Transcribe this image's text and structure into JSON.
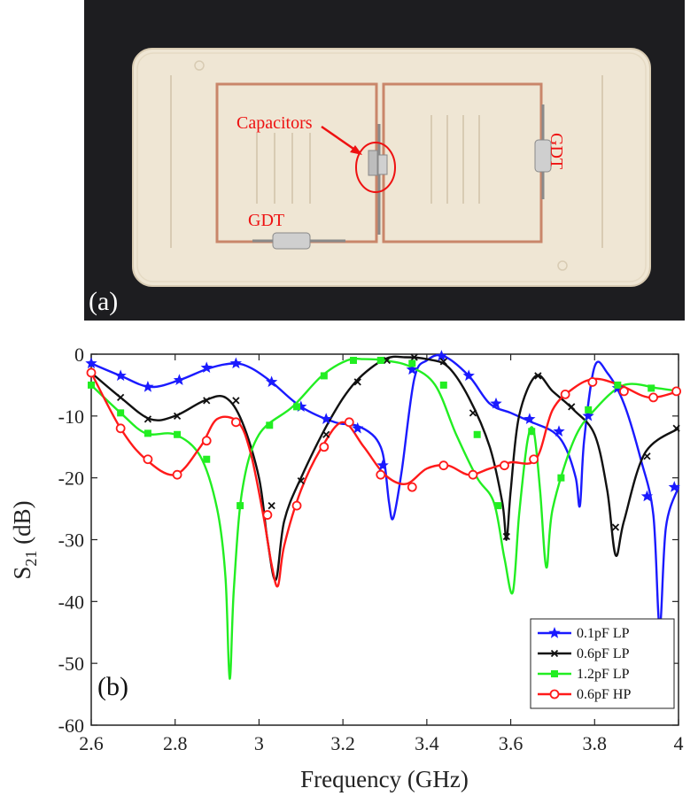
{
  "photo": {
    "panel_label": "(a)",
    "labels": {
      "capacitors": "Capacitors",
      "gdt_bottom": "GDT",
      "gdt_right": "GDT"
    },
    "colors": {
      "background": "#1c1c1e",
      "board": "#efe6d4",
      "trace": "#c9866a",
      "annotation": "#ee1111"
    }
  },
  "chart_data": {
    "type": "line",
    "panel_label": "(b)",
    "xlabel": "Frequency (GHz)",
    "ylabel_main": "S",
    "ylabel_sub": "21",
    "ylabel_suffix": "(dB)",
    "xlim": [
      2.6,
      4.0
    ],
    "ylim": [
      -60,
      0
    ],
    "xticks": [
      "2.6",
      "2.8",
      "3",
      "3.2",
      "3.4",
      "3.6",
      "3.8",
      "4"
    ],
    "yticks": [
      "0",
      "-10",
      "-20",
      "-30",
      "-40",
      "-50",
      "-60"
    ],
    "legend_position": "bottom-right",
    "series": [
      {
        "name": "0.1pF LP",
        "color": "#1a1aff",
        "marker": "star",
        "x": [
          2.6,
          2.67,
          2.74,
          2.81,
          2.88,
          2.94,
          2.98,
          3.03,
          3.1,
          3.18,
          3.23,
          3.27,
          3.29,
          3.3,
          3.31,
          3.32,
          3.34,
          3.37,
          3.4,
          3.44,
          3.5,
          3.55,
          3.6,
          3.65,
          3.7,
          3.73,
          3.755,
          3.765,
          3.775,
          3.8,
          3.83,
          3.87,
          3.91,
          3.94,
          3.955,
          3.97,
          4.0
        ],
        "y": [
          -1.5,
          -3.5,
          -5.3,
          -4.2,
          -2.3,
          -1.5,
          -2.2,
          -4.5,
          -8.5,
          -11,
          -11.5,
          -13,
          -15,
          -18,
          -24,
          -26.5,
          -19,
          -4,
          -1,
          -0.3,
          -3.5,
          -8,
          -9.5,
          -11,
          -12.5,
          -15,
          -20,
          -24.5,
          -14,
          -2,
          -3,
          -8,
          -17,
          -26,
          -44,
          -28,
          -21.5
        ],
        "marker_x": [
          2.6,
          2.67,
          2.735,
          2.81,
          2.875,
          2.945,
          3.03,
          3.1,
          3.16,
          3.235,
          3.295,
          3.365,
          3.435,
          3.5,
          3.565,
          3.645,
          3.715,
          3.785,
          3.855,
          3.925,
          3.99
        ],
        "marker_y": [
          -1.5,
          -3.5,
          -5.3,
          -4.2,
          -2.2,
          -1.5,
          -4.5,
          -8.5,
          -10.5,
          -12,
          -18,
          -2.5,
          -0.3,
          -3.5,
          -8,
          -10.5,
          -12.5,
          -10,
          -5.5,
          -23,
          -21.5
        ]
      },
      {
        "name": "0.6pF LP",
        "color": "#111111",
        "marker": "x",
        "x": [
          2.6,
          2.67,
          2.74,
          2.8,
          2.87,
          2.92,
          2.96,
          3.0,
          3.02,
          3.04,
          3.06,
          3.1,
          3.17,
          3.23,
          3.3,
          3.35,
          3.4,
          3.45,
          3.5,
          3.55,
          3.58,
          3.59,
          3.6,
          3.62,
          3.66,
          3.7,
          3.75,
          3.8,
          3.83,
          3.85,
          3.87,
          3.92,
          4.0
        ],
        "y": [
          -3,
          -7,
          -10.5,
          -10,
          -7.5,
          -7,
          -11,
          -20,
          -30,
          -36.5,
          -27,
          -20,
          -10.5,
          -4.5,
          -0.8,
          -0.5,
          -0.8,
          -2,
          -7,
          -15,
          -24,
          -30,
          -22,
          -10,
          -3.5,
          -6,
          -9,
          -13,
          -22,
          -32.5,
          -27,
          -16,
          -12
        ],
        "marker_x": [
          2.6,
          2.67,
          2.735,
          2.805,
          2.875,
          2.945,
          3.03,
          3.1,
          3.16,
          3.235,
          3.305,
          3.37,
          3.44,
          3.51,
          3.59,
          3.665,
          3.745,
          3.85,
          3.925,
          3.995
        ],
        "marker_y": [
          -3,
          -7,
          -10.5,
          -10,
          -7.5,
          -7.5,
          -24.5,
          -20.5,
          -13,
          -4.5,
          -1,
          -0.5,
          -1.2,
          -9.5,
          -29.5,
          -3.5,
          -8.5,
          -28,
          -16.5,
          -12
        ]
      },
      {
        "name": "1.2pF LP",
        "color": "#22ee22",
        "marker": "square",
        "x": [
          2.6,
          2.67,
          2.73,
          2.8,
          2.86,
          2.9,
          2.92,
          2.93,
          2.94,
          2.96,
          3.0,
          3.08,
          3.15,
          3.21,
          3.25,
          3.3,
          3.36,
          3.42,
          3.47,
          3.52,
          3.56,
          3.585,
          3.605,
          3.62,
          3.64,
          3.655,
          3.67,
          3.685,
          3.7,
          3.75,
          3.8,
          3.87,
          3.95,
          4.0
        ],
        "y": [
          -5,
          -9.5,
          -12.8,
          -13,
          -16.5,
          -25,
          -36,
          -52.5,
          -38,
          -22,
          -13,
          -8.5,
          -3.5,
          -1,
          -0.8,
          -1,
          -2,
          -5,
          -13,
          -20,
          -24,
          -33,
          -38.5,
          -26,
          -14,
          -12.5,
          -22,
          -34.5,
          -25,
          -14,
          -9,
          -5,
          -5.5,
          -6
        ],
        "marker_x": [
          2.6,
          2.67,
          2.735,
          2.805,
          2.875,
          2.955,
          3.025,
          3.09,
          3.155,
          3.225,
          3.29,
          3.365,
          3.44,
          3.52,
          3.57,
          3.65,
          3.72,
          3.785,
          3.855,
          3.935,
          3.995
        ],
        "marker_y": [
          -5,
          -9.5,
          -12.8,
          -13,
          -17,
          -24.5,
          -11.5,
          -8.5,
          -3.5,
          -1,
          -1,
          -1.5,
          -5,
          -13,
          -24.5,
          -12.5,
          -20,
          -9,
          -5,
          -5.5,
          -6
        ]
      },
      {
        "name": "0.6pF HP",
        "color": "#ff1a1a",
        "marker": "circle",
        "x": [
          2.6,
          2.67,
          2.73,
          2.8,
          2.86,
          2.9,
          2.95,
          2.98,
          3.01,
          3.03,
          3.045,
          3.06,
          3.1,
          3.15,
          3.2,
          3.25,
          3.3,
          3.35,
          3.4,
          3.45,
          3.5,
          3.55,
          3.6,
          3.66,
          3.7,
          3.75,
          3.8,
          3.86,
          3.93,
          4.0
        ],
        "y": [
          -3,
          -12,
          -17,
          -19.5,
          -15,
          -10.5,
          -11,
          -16,
          -26,
          -34,
          -37.5,
          -31,
          -22,
          -15,
          -11,
          -15,
          -19.5,
          -21,
          -18.5,
          -18,
          -19.5,
          -18.5,
          -17.5,
          -17,
          -9,
          -5.5,
          -4,
          -5,
          -7,
          -6
        ],
        "marker_x": [
          2.6,
          2.67,
          2.735,
          2.805,
          2.875,
          2.945,
          3.02,
          3.09,
          3.155,
          3.215,
          3.29,
          3.365,
          3.44,
          3.51,
          3.585,
          3.655,
          3.73,
          3.795,
          3.87,
          3.94,
          3.995
        ],
        "marker_y": [
          -3,
          -12,
          -17,
          -19.5,
          -14,
          -11,
          -26,
          -24.5,
          -15,
          -11,
          -19.5,
          -21.5,
          -18,
          -19.5,
          -18,
          -17,
          -6.5,
          -4.5,
          -6,
          -7,
          -6
        ]
      }
    ]
  }
}
